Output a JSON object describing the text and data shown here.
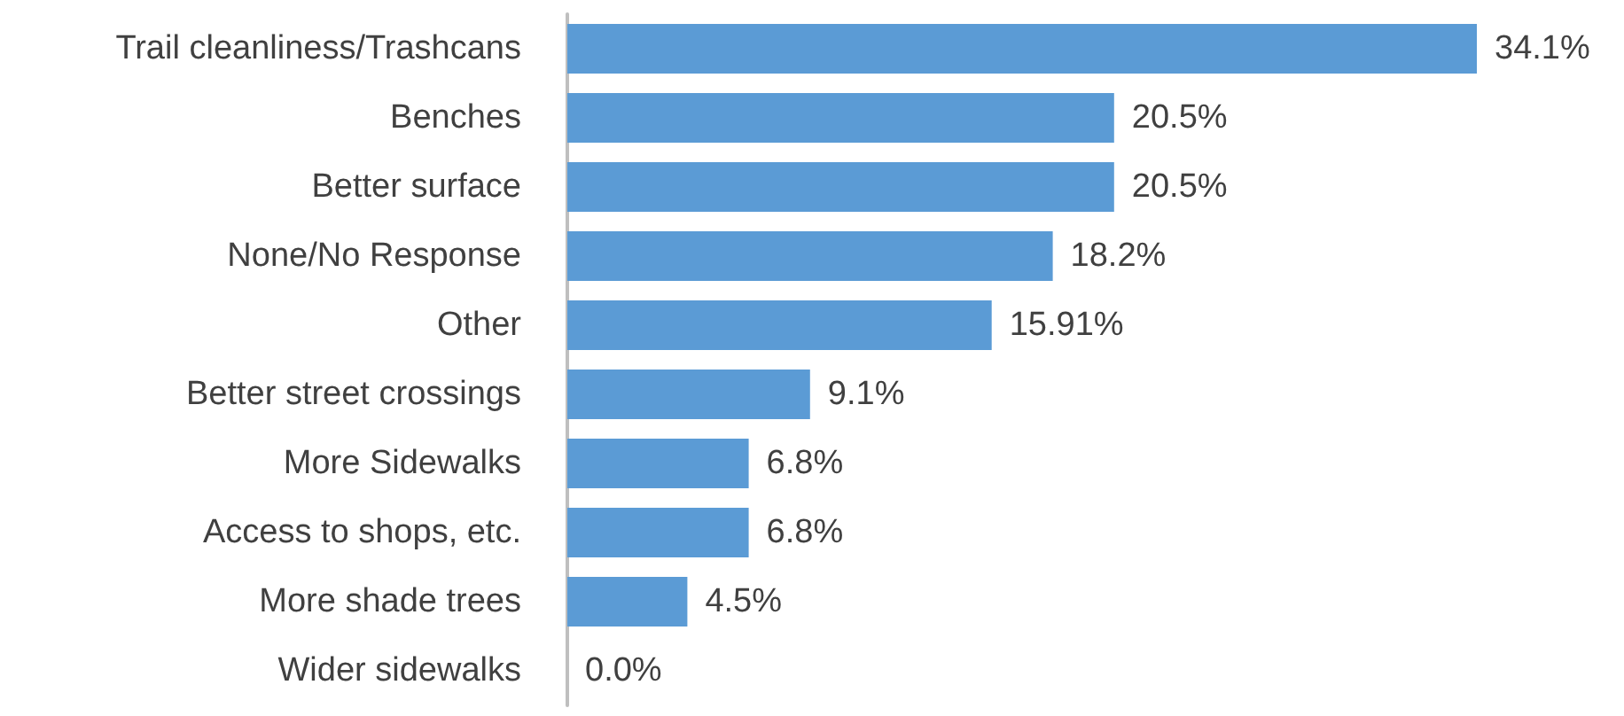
{
  "chart_data": {
    "type": "bar",
    "orientation": "horizontal",
    "categories": [
      "Trail cleanliness/Trashcans",
      "Benches",
      "Better surface",
      "None/No Response",
      "Other",
      "Better street crossings",
      "More Sidewalks",
      "Access to shops, etc.",
      "More shade trees",
      "Wider sidewalks"
    ],
    "values": [
      34.1,
      20.5,
      20.5,
      18.2,
      15.91,
      9.1,
      6.8,
      6.8,
      4.5,
      0.0
    ],
    "value_labels": [
      "34.1%",
      "20.5%",
      "20.5%",
      "18.2%",
      "15.91%",
      "9.1%",
      "6.8%",
      "6.8%",
      "4.5%",
      "0.0%"
    ],
    "color": "#5b9bd5",
    "tick_labels": "y",
    "grid": false
  }
}
